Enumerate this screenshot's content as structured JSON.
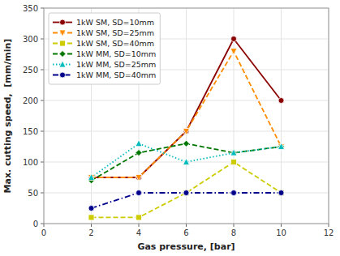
{
  "chart_data": {
    "type": "line",
    "xlabel": "Gas pressure, [bar]",
    "ylabel": "Max. cutting speed,  [mm/min]",
    "x": [
      2,
      4,
      6,
      8,
      10
    ],
    "series": [
      {
        "name": "1kW SM, SD=10mm",
        "color": "#8B0000",
        "marker": "circle",
        "line_style": "solid",
        "values": [
          75,
          75,
          150,
          300,
          200
        ]
      },
      {
        "name": "1kW SM, SD=25mm",
        "color": "#FF8C00",
        "marker": "triangle-down",
        "line_style": "dashed",
        "values": [
          75,
          75,
          150,
          280,
          125
        ]
      },
      {
        "name": "1kW SM, SD=40mm",
        "color": "#CCCC00",
        "marker": "square",
        "line_style": "dashed",
        "values": [
          10,
          10,
          50,
          100,
          50
        ]
      },
      {
        "name": "1kW MM, SD=10mm",
        "color": "#007700",
        "marker": "diamond",
        "line_style": "dashed",
        "values": [
          70,
          115,
          130,
          115,
          125
        ]
      },
      {
        "name": "1kW MM, SD=25mm",
        "color": "#00BBBB",
        "marker": "triangle-up",
        "line_style": "dotted",
        "values": [
          75,
          130,
          100,
          115,
          125
        ]
      },
      {
        "name": "1kW MM, SD=40mm",
        "color": "#00008B",
        "marker": "circle",
        "line_style": "dashdot",
        "values": [
          25,
          50,
          50,
          50,
          50
        ]
      }
    ],
    "xlim": [
      0,
      12
    ],
    "ylim": [
      0,
      350
    ],
    "xticks": [
      0,
      2,
      4,
      6,
      8,
      10,
      12
    ],
    "yticks": [
      0,
      50,
      100,
      150,
      200,
      250,
      300,
      350
    ],
    "grid": true,
    "legend": "upper left"
  }
}
